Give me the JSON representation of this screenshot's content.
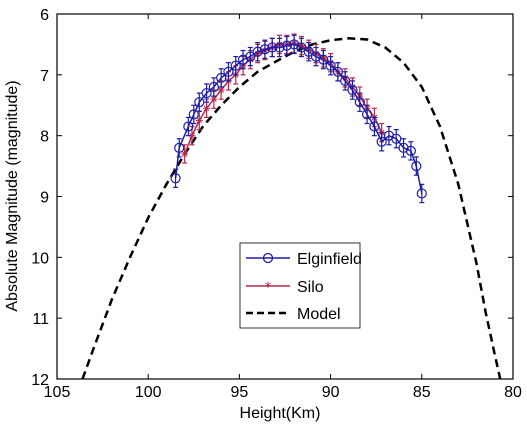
{
  "chart_data": {
    "type": "line",
    "title": "",
    "xlabel": "Height(Km)",
    "ylabel": "Absolute Magnitude (magnitude)",
    "xlim": [
      80,
      105
    ],
    "x_reversed": true,
    "ylim": [
      6,
      12
    ],
    "y_reversed": true,
    "x_ticks": [
      105,
      100,
      95,
      90,
      85,
      80
    ],
    "y_ticks": [
      6,
      7,
      8,
      9,
      10,
      11,
      12
    ],
    "grid": false,
    "legend_position": "center-right",
    "series": [
      {
        "name": "Elginfield",
        "color": "#1c1ca8",
        "marker": "circle",
        "errorbars": true,
        "x": [
          98.5,
          98.3,
          97.8,
          97.5,
          97.2,
          96.8,
          96.4,
          96.0,
          95.6,
          95.2,
          94.8,
          94.4,
          94.0,
          93.6,
          93.2,
          92.8,
          92.4,
          92.0,
          91.6,
          91.2,
          90.8,
          90.4,
          90.0,
          89.6,
          89.2,
          88.8,
          88.4,
          88.0,
          87.6,
          87.2,
          86.8,
          86.4,
          86.0,
          85.6,
          85.3,
          85.0
        ],
        "y": [
          8.7,
          8.2,
          7.85,
          7.65,
          7.45,
          7.3,
          7.2,
          7.05,
          6.95,
          6.85,
          6.75,
          6.7,
          6.62,
          6.58,
          6.55,
          6.55,
          6.52,
          6.5,
          6.55,
          6.62,
          6.7,
          6.75,
          6.85,
          6.95,
          7.1,
          7.25,
          7.45,
          7.65,
          7.85,
          8.1,
          8.0,
          8.05,
          8.2,
          8.25,
          8.5,
          8.95
        ],
        "yerr": 0.15
      },
      {
        "name": "Silo",
        "color": "#b8284a",
        "marker": "star",
        "errorbars": true,
        "x": [
          98.0,
          97.6,
          97.2,
          96.8,
          96.4,
          96.0,
          95.6,
          95.2,
          94.8,
          94.4,
          94.0,
          93.6,
          93.2,
          92.8,
          92.4,
          92.0,
          91.6,
          91.2,
          90.8,
          90.4,
          90.0,
          89.6,
          89.2,
          88.8,
          88.4,
          88.0,
          87.6,
          87.2
        ],
        "y": [
          8.3,
          8.0,
          7.75,
          7.55,
          7.4,
          7.25,
          7.1,
          7.0,
          6.85,
          6.75,
          6.65,
          6.6,
          6.55,
          6.5,
          6.5,
          6.48,
          6.52,
          6.58,
          6.65,
          6.72,
          6.8,
          6.95,
          7.05,
          7.2,
          7.35,
          7.55,
          7.7,
          7.95
        ],
        "yerr": 0.15
      },
      {
        "name": "Model",
        "color": "#000000",
        "style": "dashed",
        "x": [
          103.6,
          103.0,
          102.0,
          101.0,
          100.0,
          99.0,
          98.0,
          97.0,
          96.0,
          95.0,
          94.0,
          93.0,
          92.0,
          91.0,
          90.0,
          89.0,
          88.0,
          87.0,
          86.0,
          85.0,
          84.0,
          83.0,
          82.0,
          81.5,
          81.0,
          80.7
        ],
        "y": [
          12.0,
          11.5,
          10.7,
          10.0,
          9.35,
          8.8,
          8.3,
          7.85,
          7.5,
          7.2,
          6.95,
          6.78,
          6.62,
          6.5,
          6.43,
          6.4,
          6.42,
          6.55,
          6.8,
          7.2,
          7.85,
          8.8,
          10.1,
          10.9,
          11.6,
          12.0
        ]
      }
    ]
  }
}
